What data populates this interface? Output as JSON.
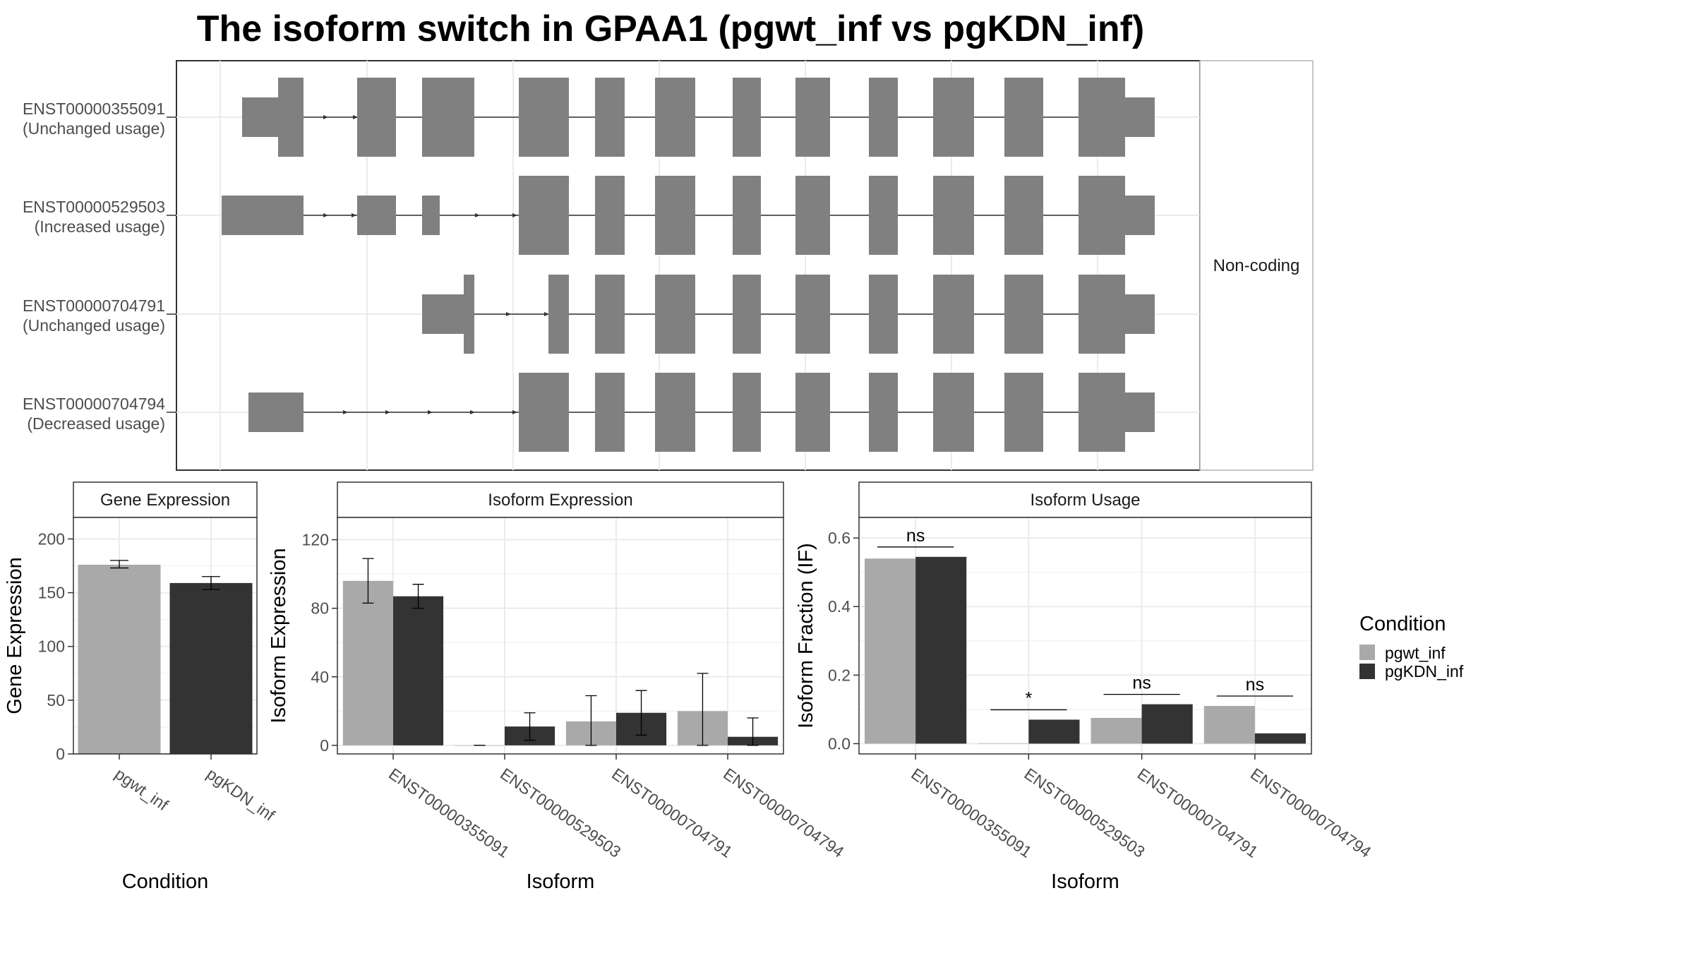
{
  "title": "The isoform switch in GPAA1 (pgwt_inf vs pgKDN_inf)",
  "colors": {
    "pgwt_inf": "#a9a9a9",
    "pgKDN_inf": "#333333",
    "exon": "#808080",
    "grid": "#ebebeb",
    "panel_border": "#333333"
  },
  "chart_data": [
    {
      "type": "gene-structure",
      "strip_label": "Non-coding",
      "transcripts": [
        {
          "id": "ENST00000355091",
          "usage": "(Unchanged usage)"
        },
        {
          "id": "ENST00000529503",
          "usage": "(Increased usage)"
        },
        {
          "id": "ENST00000704791",
          "usage": "(Unchanged usage)"
        },
        {
          "id": "ENST00000704794",
          "usage": "(Decreased usage)"
        }
      ]
    },
    {
      "type": "bar",
      "title": "Gene Expression",
      "xlabel": "Condition",
      "ylabel": "Gene Expression",
      "categories": [
        "pgwt_inf",
        "pgKDN_inf"
      ],
      "values": [
        176,
        159
      ],
      "error": [
        [
          173,
          180
        ],
        [
          153,
          165
        ]
      ],
      "ylim": [
        0,
        220
      ],
      "yticks": [
        0,
        50,
        100,
        150,
        200
      ],
      "grid": true
    },
    {
      "type": "bar",
      "title": "Isoform Expression",
      "xlabel": "Isoform",
      "ylabel": "Isoform Expression",
      "categories": [
        "ENST00000355091",
        "ENST00000529503",
        "ENST00000704791",
        "ENST00000704794"
      ],
      "series": [
        {
          "name": "pgwt_inf",
          "values": [
            96,
            0,
            14,
            20
          ],
          "error": [
            [
              83,
              109
            ],
            [
              0,
              0
            ],
            [
              0,
              29
            ],
            [
              0,
              42
            ]
          ]
        },
        {
          "name": "pgKDN_inf",
          "values": [
            87,
            11,
            19,
            5
          ],
          "error": [
            [
              80,
              94
            ],
            [
              3,
              19
            ],
            [
              6,
              32
            ],
            [
              0,
              16
            ]
          ]
        }
      ],
      "ylim": [
        -5,
        133
      ],
      "yticks": [
        0,
        40,
        80,
        120
      ],
      "grid": true
    },
    {
      "type": "bar",
      "title": "Isoform Usage",
      "xlabel": "Isoform",
      "ylabel": "Isoform Fraction (IF)",
      "categories": [
        "ENST00000355091",
        "ENST00000529503",
        "ENST00000704791",
        "ENST00000704794"
      ],
      "series": [
        {
          "name": "pgwt_inf",
          "values": [
            0.54,
            0.0,
            0.075,
            0.11
          ]
        },
        {
          "name": "pgKDN_inf",
          "values": [
            0.545,
            0.07,
            0.115,
            0.03
          ]
        }
      ],
      "significance": [
        "ns",
        "*",
        "ns",
        "ns"
      ],
      "ylim": [
        -0.03,
        0.66
      ],
      "yticks": [
        0.0,
        0.2,
        0.4,
        0.6
      ],
      "grid": true
    }
  ],
  "legend": {
    "title": "Condition",
    "entries": [
      "pgwt_inf",
      "pgKDN_inf"
    ],
    "placement": "right"
  }
}
